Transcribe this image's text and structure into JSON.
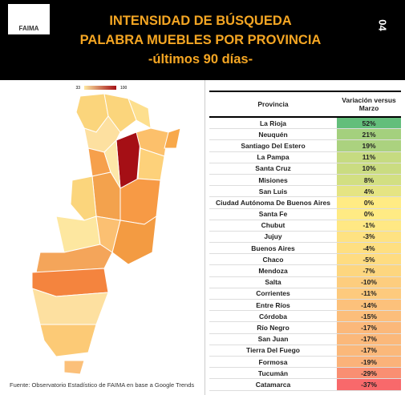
{
  "header": {
    "logo": "FAIMA",
    "title_lines": [
      "INTENSIDAD DE BÚSQUEDA",
      "PALABRA MUEBLES POR PROVINCIA",
      "-últimos 90 días-"
    ],
    "page": "04"
  },
  "map": {
    "legend_min": "33",
    "legend_max": "100"
  },
  "table": {
    "columns": [
      "Provincia",
      "Variación versus Marzo"
    ],
    "rows": [
      {
        "province": "La Rioja",
        "change": "52%",
        "color": "#63be7b"
      },
      {
        "province": "Neuquén",
        "change": "21%",
        "color": "#a4d07e"
      },
      {
        "province": "Santiago Del Estero",
        "change": "19%",
        "color": "#abd27f"
      },
      {
        "province": "La Pampa",
        "change": "11%",
        "color": "#c6db81"
      },
      {
        "province": "Santa Cruz",
        "change": "10%",
        "color": "#cadc81"
      },
      {
        "province": "Misiones",
        "change": "8%",
        "color": "#d2df82"
      },
      {
        "province": "San Luis",
        "change": "4%",
        "color": "#e5e483"
      },
      {
        "province": "Ciudad Autónoma De Buenos Aires",
        "change": "0%",
        "color": "#ffeb84"
      },
      {
        "province": "Santa Fe",
        "change": "0%",
        "color": "#ffeb84"
      },
      {
        "province": "Chubut",
        "change": "-1%",
        "color": "#ffe884"
      },
      {
        "province": "Jujuy",
        "change": "-3%",
        "color": "#fee282"
      },
      {
        "province": "Buenos Aires",
        "change": "-4%",
        "color": "#fedf81"
      },
      {
        "province": "Chaco",
        "change": "-5%",
        "color": "#fedc81"
      },
      {
        "province": "Mendoza",
        "change": "-7%",
        "color": "#fdd67f"
      },
      {
        "province": "Salta",
        "change": "-10%",
        "color": "#fdcd7e"
      },
      {
        "province": "Corrientes",
        "change": "-11%",
        "color": "#fdca7d"
      },
      {
        "province": "Entre Ríos",
        "change": "-14%",
        "color": "#fcc17b"
      },
      {
        "province": "Córdoba",
        "change": "-15%",
        "color": "#fcbe7b"
      },
      {
        "province": "Río Negro",
        "change": "-17%",
        "color": "#fbb87a"
      },
      {
        "province": "San Juan",
        "change": "-17%",
        "color": "#fbb87a"
      },
      {
        "province": "Tierra Del Fuego",
        "change": "-17%",
        "color": "#fbb87a"
      },
      {
        "province": "Formosa",
        "change": "-19%",
        "color": "#fbb279"
      },
      {
        "province": "Tucumán",
        "change": "-29%",
        "color": "#f98f72"
      },
      {
        "province": "Catamarca",
        "change": "-37%",
        "color": "#f8696b"
      }
    ]
  },
  "footer": {
    "source": "Fuente: Observatorio Estadístico de FAIMA en base a Google Trends"
  }
}
